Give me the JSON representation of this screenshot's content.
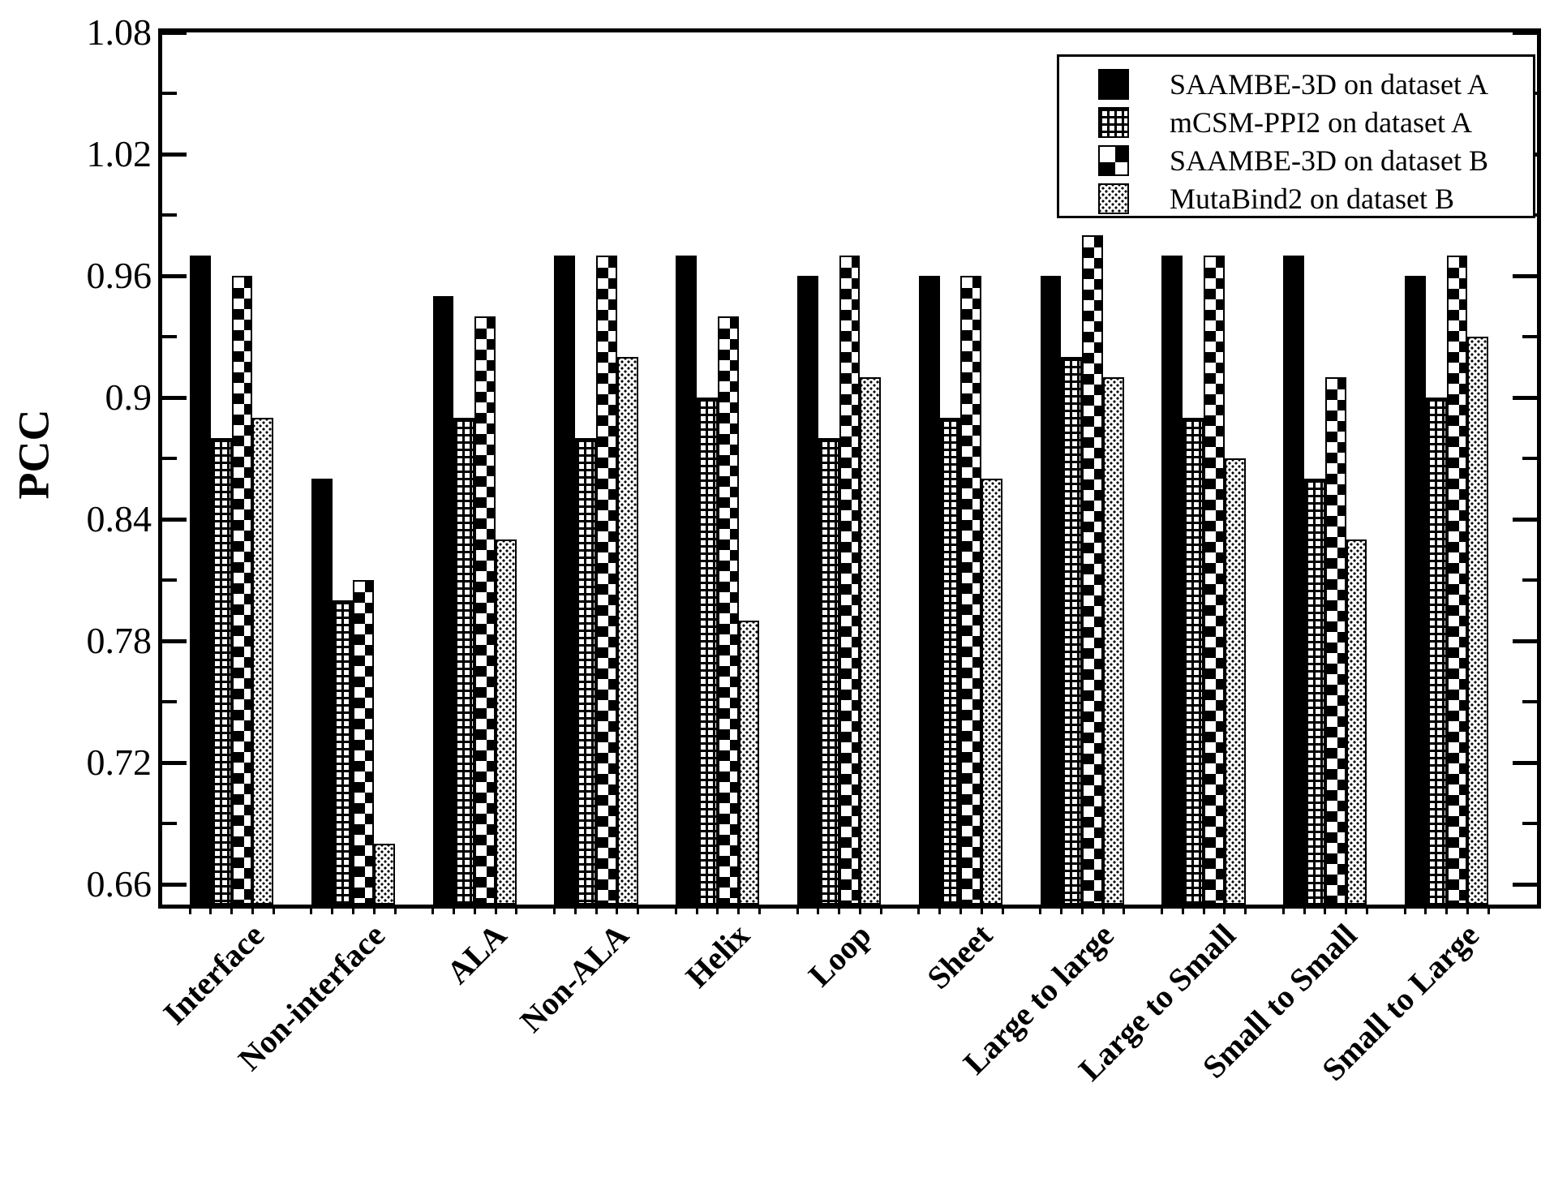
{
  "figure": {
    "background": "#ffffff",
    "ink_color": "#000000"
  },
  "chart_data": {
    "type": "bar",
    "title": "",
    "xlabel": "",
    "ylabel": "PCC",
    "ylim": [
      0.65,
      1.08
    ],
    "grid": false,
    "legend_position": "top-right",
    "yticks": [
      1.08,
      1.02,
      0.96,
      0.9,
      0.84,
      0.78,
      0.72,
      0.66
    ],
    "ytick_labels": [
      "1.08",
      "1.02",
      "0.96",
      "0.9",
      "0.84",
      "0.78",
      "0.72",
      "0.66"
    ],
    "minor_ytick_step": 0.03,
    "categories": [
      "Interface",
      "Non-interface",
      "ALA",
      "Non-ALA",
      "Helix",
      "Loop",
      "Sheet",
      "Large to large",
      "Large to Small",
      "Small to Small",
      "Small to Large"
    ],
    "series": [
      {
        "name": "SAAMBE-3D on dataset A",
        "pattern": "solid",
        "values": [
          0.97,
          0.86,
          0.95,
          0.97,
          0.97,
          0.96,
          0.96,
          0.96,
          0.97,
          0.97,
          0.96
        ]
      },
      {
        "name": "mCSM-PPI2 on dataset A",
        "pattern": "grid",
        "values": [
          0.88,
          0.8,
          0.89,
          0.88,
          0.9,
          0.88,
          0.89,
          0.92,
          0.89,
          0.86,
          0.9
        ]
      },
      {
        "name": "SAAMBE-3D on dataset B",
        "pattern": "checker",
        "values": [
          0.96,
          0.81,
          0.94,
          0.97,
          0.94,
          0.97,
          0.96,
          0.98,
          0.97,
          0.91,
          0.97
        ]
      },
      {
        "name": "MutaBind2 on dataset B",
        "pattern": "dots",
        "values": [
          0.89,
          0.68,
          0.83,
          0.92,
          0.79,
          0.91,
          0.86,
          0.91,
          0.87,
          0.83,
          0.93
        ]
      }
    ]
  }
}
